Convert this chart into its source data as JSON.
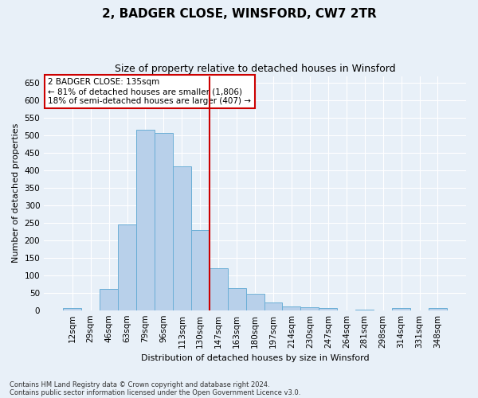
{
  "title": "2, BADGER CLOSE, WINSFORD, CW7 2TR",
  "subtitle": "Size of property relative to detached houses in Winsford",
  "xlabel": "Distribution of detached houses by size in Winsford",
  "ylabel": "Number of detached properties",
  "footnote1": "Contains HM Land Registry data © Crown copyright and database right 2024.",
  "footnote2": "Contains public sector information licensed under the Open Government Licence v3.0.",
  "bar_labels": [
    "12sqm",
    "29sqm",
    "46sqm",
    "63sqm",
    "79sqm",
    "96sqm",
    "113sqm",
    "130sqm",
    "147sqm",
    "163sqm",
    "180sqm",
    "197sqm",
    "214sqm",
    "230sqm",
    "247sqm",
    "264sqm",
    "281sqm",
    "298sqm",
    "314sqm",
    "331sqm",
    "348sqm"
  ],
  "bar_values": [
    5,
    0,
    60,
    245,
    517,
    507,
    411,
    230,
    120,
    63,
    47,
    22,
    10,
    8,
    5,
    0,
    2,
    0,
    5,
    0,
    5
  ],
  "bar_color": "#b8d0ea",
  "bar_edge_color": "#6aaed6",
  "vline_x": 7.5,
  "vline_color": "#cc0000",
  "ylim": [
    0,
    670
  ],
  "yticks": [
    0,
    50,
    100,
    150,
    200,
    250,
    300,
    350,
    400,
    450,
    500,
    550,
    600,
    650
  ],
  "annotation_text": "2 BADGER CLOSE: 135sqm\n← 81% of detached houses are smaller (1,806)\n18% of semi-detached houses are larger (407) →",
  "annotation_box_color": "#ffffff",
  "annotation_box_edge": "#cc0000",
  "bg_color": "#e8f0f8",
  "grid_color": "#ffffff",
  "title_fontsize": 11,
  "subtitle_fontsize": 9,
  "label_fontsize": 8,
  "tick_fontsize": 7.5,
  "annotation_fontsize": 7.5
}
